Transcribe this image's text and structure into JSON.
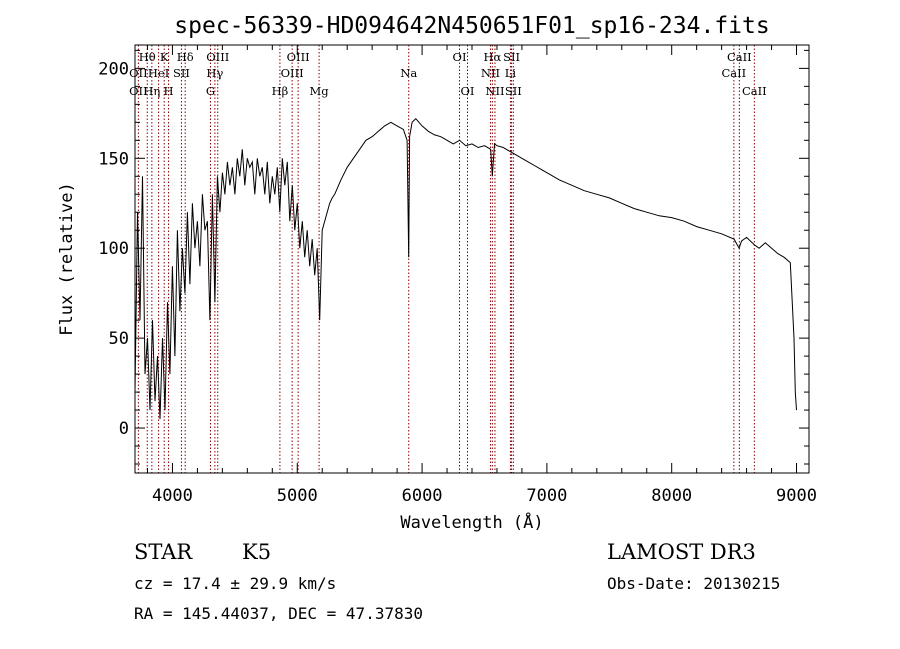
{
  "chart_data": {
    "type": "line",
    "title": "spec-56339-HD094642N450651F01_sp16-234.fits",
    "xlabel": "Wavelength (Å)",
    "ylabel": "Flux (relative)",
    "xlim": [
      3700,
      9100
    ],
    "ylim": [
      -25,
      213
    ],
    "xticks": [
      4000,
      5000,
      6000,
      7000,
      8000,
      9000
    ],
    "yticks": [
      0,
      50,
      100,
      150,
      200
    ],
    "grid": false,
    "series": [
      {
        "color": "#000000",
        "x": [
          3700,
          3720,
          3740,
          3760,
          3780,
          3800,
          3820,
          3840,
          3860,
          3880,
          3900,
          3920,
          3940,
          3960,
          3980,
          4000,
          4020,
          4040,
          4060,
          4080,
          4100,
          4120,
          4140,
          4160,
          4180,
          4200,
          4220,
          4240,
          4260,
          4280,
          4300,
          4320,
          4340,
          4360,
          4380,
          4400,
          4420,
          4440,
          4460,
          4480,
          4500,
          4520,
          4540,
          4560,
          4580,
          4600,
          4620,
          4640,
          4660,
          4680,
          4700,
          4720,
          4740,
          4760,
          4780,
          4800,
          4820,
          4840,
          4860,
          4880,
          4900,
          4920,
          4940,
          4960,
          4980,
          5000,
          5020,
          5040,
          5060,
          5080,
          5100,
          5120,
          5140,
          5160,
          5180,
          5200,
          5220,
          5240,
          5260,
          5280,
          5300,
          5350,
          5400,
          5450,
          5500,
          5550,
          5600,
          5650,
          5700,
          5750,
          5800,
          5850,
          5880,
          5893,
          5900,
          5920,
          5950,
          6000,
          6050,
          6100,
          6150,
          6200,
          6250,
          6300,
          6350,
          6400,
          6450,
          6500,
          6550,
          6563,
          6580,
          6600,
          6650,
          6700,
          6750,
          6800,
          6850,
          6900,
          6950,
          7000,
          7100,
          7200,
          7300,
          7400,
          7500,
          7600,
          7700,
          7800,
          7900,
          8000,
          8100,
          8200,
          8300,
          8400,
          8500,
          8540,
          8560,
          8600,
          8660,
          8700,
          8750,
          8800,
          8850,
          8900,
          8950,
          8980,
          8990,
          9000
        ],
        "y": [
          20,
          120,
          60,
          140,
          30,
          50,
          10,
          60,
          15,
          40,
          5,
          50,
          10,
          70,
          30,
          90,
          40,
          110,
          65,
          100,
          75,
          120,
          80,
          125,
          100,
          115,
          90,
          130,
          110,
          115,
          60,
          130,
          70,
          140,
          120,
          142,
          130,
          148,
          135,
          145,
          130,
          150,
          140,
          155,
          135,
          150,
          145,
          148,
          130,
          150,
          140,
          145,
          130,
          148,
          125,
          140,
          130,
          145,
          120,
          150,
          135,
          148,
          115,
          135,
          110,
          125,
          100,
          115,
          95,
          110,
          90,
          105,
          85,
          100,
          60,
          110,
          115,
          120,
          125,
          128,
          130,
          138,
          145,
          150,
          155,
          160,
          162,
          165,
          168,
          170,
          168,
          166,
          160,
          95,
          162,
          170,
          172,
          168,
          165,
          163,
          162,
          160,
          158,
          160,
          157,
          158,
          156,
          157,
          155,
          140,
          158,
          157,
          156,
          154,
          152,
          150,
          148,
          146,
          144,
          142,
          138,
          135,
          132,
          130,
          128,
          125,
          122,
          120,
          118,
          117,
          115,
          112,
          110,
          108,
          105,
          100,
          104,
          106,
          102,
          100,
          103,
          100,
          97,
          95,
          92,
          50,
          20,
          10
        ]
      }
    ],
    "spectral_lines": [
      {
        "label": "OII",
        "wl": 3727,
        "row": 2
      },
      {
        "label": "OII",
        "wl": 3727,
        "row": 3
      },
      {
        "label": "Hθ",
        "wl": 3798,
        "row": 1
      },
      {
        "label": "Hη",
        "wl": 3835,
        "row": 3
      },
      {
        "label": "HeI",
        "wl": 3889,
        "row": 2
      },
      {
        "label": "K",
        "wl": 3934,
        "row": 1
      },
      {
        "label": "H",
        "wl": 3969,
        "row": 3
      },
      {
        "label": "SII",
        "wl": 4072,
        "row": 2
      },
      {
        "label": "Hδ",
        "wl": 4102,
        "row": 1
      },
      {
        "label": "OIII",
        "wl": 4363,
        "row": 1
      },
      {
        "label": "Hγ",
        "wl": 4340,
        "row": 2
      },
      {
        "label": "G",
        "wl": 4305,
        "row": 3
      },
      {
        "label": "Hβ",
        "wl": 4861,
        "row": 3
      },
      {
        "label": "OIII",
        "wl": 4959,
        "row": 2
      },
      {
        "label": "OIII",
        "wl": 5007,
        "row": 1
      },
      {
        "label": "Mg",
        "wl": 5175,
        "row": 3
      },
      {
        "label": "Na",
        "wl": 5893,
        "row": 2
      },
      {
        "label": "OI",
        "wl": 6300,
        "row": 1
      },
      {
        "label": "OI",
        "wl": 6364,
        "row": 3
      },
      {
        "label": "Hα",
        "wl": 6563,
        "row": 1
      },
      {
        "label": "NII",
        "wl": 6548,
        "row": 2
      },
      {
        "label": "NII",
        "wl": 6584,
        "row": 3
      },
      {
        "label": "SII",
        "wl": 6717,
        "row": 1
      },
      {
        "label": "Li",
        "wl": 6708,
        "row": 2
      },
      {
        "label": "SII",
        "wl": 6731,
        "row": 3
      },
      {
        "label": "CaII",
        "wl": 8542,
        "row": 1
      },
      {
        "label": "CaII",
        "wl": 8498,
        "row": 2
      },
      {
        "label": "CaII",
        "wl": 8662,
        "row": 3
      }
    ]
  },
  "info": {
    "object_type": "STAR",
    "subclass": "K5",
    "survey": "LAMOST DR3",
    "cz": "cz = 17.4 ± 29.9 km/s",
    "obs_date": "Obs-Date: 20130215",
    "coords": "RA = 145.44037, DEC =  47.37830"
  },
  "colors": {
    "spectral_line": "#8b0000",
    "spectrum": "#000000",
    "axis": "#000000"
  }
}
